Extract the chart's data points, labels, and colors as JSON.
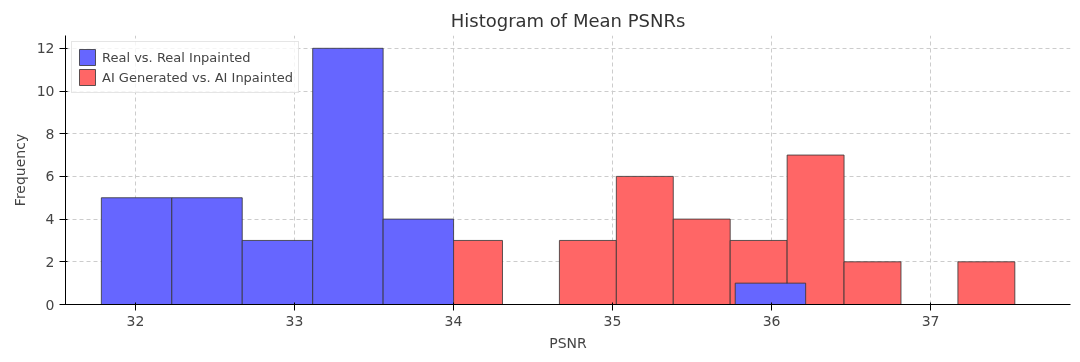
{
  "chart_data": {
    "type": "bar",
    "title": "Histogram of Mean PSNRs",
    "xlabel": "PSNR",
    "ylabel": "Frequency",
    "series": [
      {
        "name": "Real vs. Real Inpainted",
        "color": "#6666ff",
        "x": [
          32.007,
          32.45,
          32.893,
          33.336,
          33.779,
          35.993
        ],
        "values": [
          5,
          5,
          3,
          12,
          4,
          1
        ]
      },
      {
        "name": "AI Generated vs. AI Inpainted",
        "color": "#ff6666",
        "x": [
          34.129,
          34.845,
          35.203,
          35.561,
          35.919,
          36.277,
          36.635,
          37.351
        ],
        "values": [
          3,
          3,
          6,
          4,
          3,
          7,
          2,
          2
        ]
      }
    ],
    "xlim": [
      31.56,
      37.88
    ],
    "ylim": [
      0,
      12.6
    ],
    "xticks": [
      32,
      33,
      34,
      35,
      36,
      37
    ],
    "yticks": [
      0,
      2,
      4,
      6,
      8,
      10,
      12
    ],
    "grid": true,
    "legend": "top left"
  }
}
